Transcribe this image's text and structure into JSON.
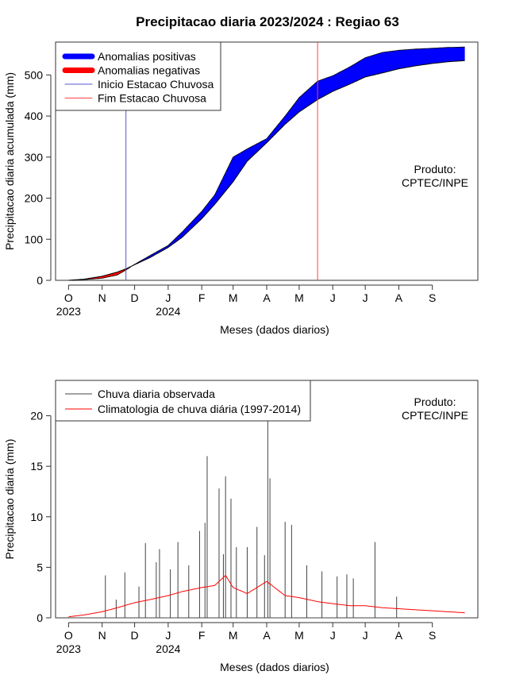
{
  "page": {
    "title": "Precipitacao diaria 2023/2024 : Regiao 63"
  },
  "colors": {
    "positive": "#0000ff",
    "negative": "#ff0000",
    "onset_line": "#5555cc",
    "end_line": "#ff4444",
    "observed": "#444444",
    "climatology": "#ff0000"
  },
  "chart_data": [
    {
      "type": "area",
      "title": "Precipitacao diaria 2023/2024 : Regiao 63",
      "xlabel": "Meses (dados diarios)",
      "ylabel": "Precipitacao diaria acumulada (mm)",
      "ylim": [
        0,
        580
      ],
      "yticks": [
        0,
        100,
        200,
        300,
        400,
        500
      ],
      "x_unit": "days since 2023-10-01",
      "xlim": [
        -12,
        378
      ],
      "month_ticks": [
        {
          "day": 0,
          "label": "O"
        },
        {
          "day": 31,
          "label": "N"
        },
        {
          "day": 61,
          "label": "D"
        },
        {
          "day": 92,
          "label": "J"
        },
        {
          "day": 123,
          "label": "F"
        },
        {
          "day": 152,
          "label": "M"
        },
        {
          "day": 183,
          "label": "A"
        },
        {
          "day": 213,
          "label": "M"
        },
        {
          "day": 244,
          "label": "J"
        },
        {
          "day": 274,
          "label": "J"
        },
        {
          "day": 305,
          "label": "A"
        },
        {
          "day": 336,
          "label": "S"
        }
      ],
      "year_labels": [
        {
          "day": 0,
          "label": "2023"
        },
        {
          "day": 92,
          "label": "2024"
        }
      ],
      "legend": {
        "position": "top-left",
        "entries": [
          "Anomalias positivas",
          "Anomalias negativas",
          "Inicio Estacao Chuvosa",
          "Fim Estacao Chuvosa"
        ]
      },
      "product_label": [
        "Produto:",
        "CPTEC/INPE"
      ],
      "onset_day": 53,
      "end_day": 230,
      "series": [
        {
          "name": "Climatologia acumulada",
          "x": [
            0,
            15,
            31,
            45,
            53,
            61,
            75,
            92,
            105,
            123,
            135,
            152,
            165,
            183,
            200,
            213,
            230,
            244,
            260,
            274,
            290,
            305,
            320,
            336,
            350,
            366
          ],
          "values": [
            0,
            3,
            10,
            20,
            28,
            38,
            55,
            80,
            105,
            150,
            185,
            240,
            290,
            335,
            380,
            410,
            440,
            460,
            478,
            495,
            505,
            515,
            522,
            528,
            532,
            535
          ]
        },
        {
          "name": "Observado acumulado",
          "x": [
            0,
            15,
            31,
            45,
            53,
            61,
            75,
            92,
            105,
            123,
            135,
            152,
            165,
            183,
            200,
            213,
            230,
            244,
            260,
            274,
            290,
            305,
            320,
            336,
            350,
            366
          ],
          "values": [
            0,
            2,
            5,
            13,
            25,
            39,
            60,
            85,
            118,
            168,
            208,
            300,
            320,
            345,
            400,
            445,
            485,
            498,
            520,
            542,
            555,
            560,
            563,
            565,
            567,
            568
          ]
        }
      ]
    },
    {
      "type": "bar",
      "xlabel": "Meses (dados diarios)",
      "ylabel": "Precipitacao diaria (mm)",
      "ylim": [
        0,
        23.5
      ],
      "yticks": [
        0,
        5,
        10,
        15,
        20
      ],
      "x_unit": "days since 2023-10-01",
      "xlim": [
        -12,
        378
      ],
      "month_ticks": [
        {
          "day": 0,
          "label": "O"
        },
        {
          "day": 31,
          "label": "N"
        },
        {
          "day": 61,
          "label": "D"
        },
        {
          "day": 92,
          "label": "J"
        },
        {
          "day": 123,
          "label": "F"
        },
        {
          "day": 152,
          "label": "M"
        },
        {
          "day": 183,
          "label": "A"
        },
        {
          "day": 213,
          "label": "M"
        },
        {
          "day": 244,
          "label": "J"
        },
        {
          "day": 274,
          "label": "J"
        },
        {
          "day": 305,
          "label": "A"
        },
        {
          "day": 336,
          "label": "S"
        }
      ],
      "year_labels": [
        {
          "day": 0,
          "label": "2023"
        },
        {
          "day": 92,
          "label": "2024"
        }
      ],
      "legend": {
        "position": "top-left",
        "entries": [
          "Chuva diaria observada",
          "Climatologia de chuva diária (1997-2014)"
        ]
      },
      "product_label": [
        "Produto:",
        "CPTEC/INPE"
      ],
      "series": [
        {
          "name": "Chuva diaria observada",
          "x": [
            34,
            44,
            52,
            65,
            71,
            81,
            84,
            94,
            101,
            111,
            121,
            126,
            128,
            139,
            143,
            145,
            150,
            155,
            165,
            174,
            181,
            184,
            186,
            200,
            206,
            220,
            234,
            248,
            257,
            263,
            283,
            303
          ],
          "values": [
            4.2,
            1.8,
            4.5,
            3.1,
            7.4,
            5.5,
            6.8,
            4.8,
            7.5,
            5.2,
            8.6,
            9.4,
            16.0,
            12.8,
            6.3,
            14.0,
            11.8,
            7.0,
            7.0,
            9.0,
            6.2,
            21.5,
            13.8,
            9.5,
            9.2,
            5.2,
            4.6,
            4.1,
            4.3,
            3.9,
            7.5,
            2.1
          ]
        },
        {
          "name": "Climatologia de chuva diária (1997-2014)",
          "x": [
            0,
            15,
            31,
            45,
            61,
            75,
            92,
            105,
            123,
            135,
            145,
            152,
            165,
            183,
            200,
            213,
            230,
            244,
            260,
            274,
            290,
            305,
            320,
            336,
            350,
            366
          ],
          "values": [
            0.1,
            0.3,
            0.6,
            1.0,
            1.5,
            1.8,
            2.2,
            2.6,
            3.0,
            3.2,
            4.2,
            3.0,
            2.4,
            3.6,
            2.2,
            2.0,
            1.6,
            1.4,
            1.2,
            1.2,
            1.0,
            0.9,
            0.8,
            0.7,
            0.6,
            0.5
          ]
        }
      ]
    }
  ]
}
